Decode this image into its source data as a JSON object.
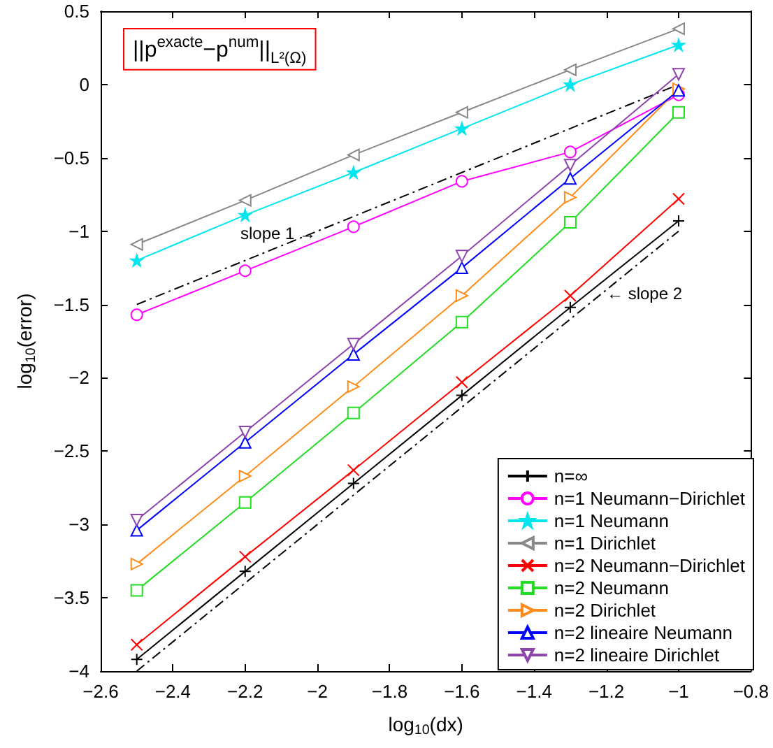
{
  "chart_data": {
    "type": "line",
    "xlabel": "log$_{10}$(dx)",
    "ylabel": "log$_{10}$(error)",
    "x": [
      -2.5,
      -2.2,
      -1.9,
      -1.6,
      -1.3,
      -1.0
    ],
    "xlim": [
      -2.6,
      -0.8
    ],
    "xticks": [
      -2.6,
      -2.4,
      -2.2,
      -2,
      -1.8,
      -1.6,
      -1.4,
      -1.2,
      -1,
      -0.8
    ],
    "ylim": [
      -4,
      0.5
    ],
    "yticks": [
      -4,
      -3.5,
      -3,
      -2.5,
      -2,
      -1.5,
      -1,
      -0.5,
      0,
      0.5
    ],
    "grid": false,
    "legend": "bottom right",
    "series": [
      {
        "name": "n=∞",
        "color": "#000000",
        "marker": "plus",
        "values": [
          -3.92,
          -3.32,
          -2.72,
          -2.12,
          -1.52,
          -0.93
        ]
      },
      {
        "name": "n=1 Neumann−Dirichlet",
        "color": "#ff00ff",
        "marker": "circle",
        "values": [
          -1.57,
          -1.27,
          -0.97,
          -0.66,
          -0.46,
          -0.07
        ]
      },
      {
        "name": "n=1 Neumann",
        "color": "#00e5ee",
        "marker": "star",
        "values": [
          -1.2,
          -0.89,
          -0.6,
          -0.3,
          0.0,
          0.27
        ]
      },
      {
        "name": "n=1 Dirichlet",
        "color": "#888888",
        "marker": "triangle-left",
        "values": [
          -1.09,
          -0.79,
          -0.48,
          -0.19,
          0.1,
          0.38
        ]
      },
      {
        "name": "n=2 Neumann−Dirichlet",
        "color": "#ff0000",
        "marker": "cross",
        "values": [
          -3.82,
          -3.22,
          -2.63,
          -2.03,
          -1.44,
          -0.78
        ]
      },
      {
        "name": "n=2 Neumann",
        "color": "#22dd22",
        "marker": "square",
        "values": [
          -3.45,
          -2.85,
          -2.24,
          -1.62,
          -0.94,
          -0.19
        ]
      },
      {
        "name": "n=2 Dirichlet",
        "color": "#ff8c1a",
        "marker": "triangle-right",
        "values": [
          -3.27,
          -2.67,
          -2.06,
          -1.44,
          -0.77,
          -0.03
        ]
      },
      {
        "name": "n=2 lineaire Neumann",
        "color": "#0000ff",
        "marker": "triangle",
        "values": [
          -3.04,
          -2.44,
          -1.84,
          -1.25,
          -0.64,
          -0.04
        ]
      },
      {
        "name": "n=2 lineaire Dirichlet",
        "color": "#8e44ad",
        "marker": "triangle-down",
        "values": [
          -2.97,
          -2.37,
          -1.77,
          -1.17,
          -0.55,
          0.07
        ]
      },
      {
        "color": "#000000",
        "marker": "none",
        "line_style": "dashdot",
        "values": [
          -1.5,
          -1.2,
          -0.9,
          -0.6,
          -0.3,
          0.0
        ]
      },
      {
        "color": "#000000",
        "marker": "none",
        "line_style": "dashdot",
        "values": [
          -4.0,
          -3.4,
          -2.8,
          -2.2,
          -1.6,
          -1.0
        ]
      }
    ],
    "annotations": [
      "||p$^{exacte}$−p$^{num}$||$_{L²(Ω)}$",
      "slope 1 →",
      "← slope 2"
    ]
  }
}
